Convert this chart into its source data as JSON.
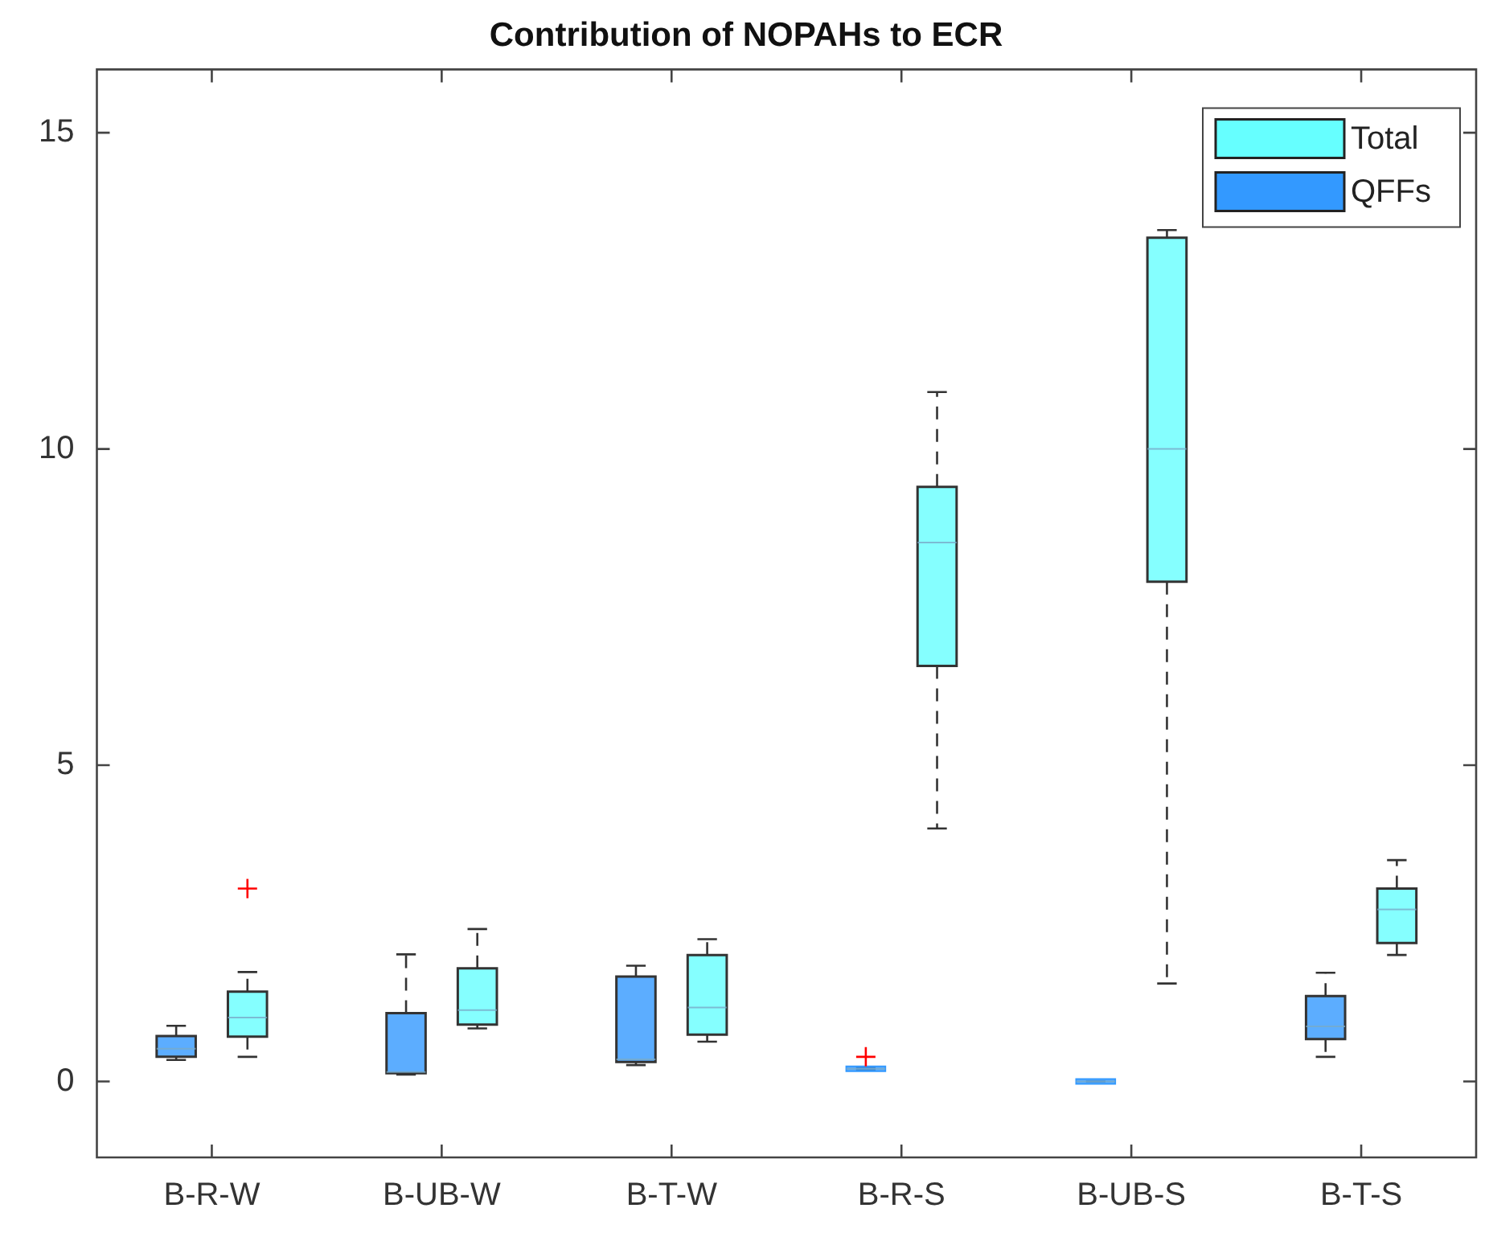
{
  "chart_data": {
    "type": "box",
    "title": "Contribution of NOPAHs to ECR",
    "categories": [
      "B-R-W",
      "B-UB-W",
      "B-T-W",
      "B-R-S",
      "B-UB-S",
      "B-T-S"
    ],
    "series": [
      {
        "name": "Total",
        "color": "#66ffff",
        "boxes": [
          {
            "low": 0.39,
            "q1": 0.71,
            "median": 1.01,
            "q3": 1.42,
            "high": 1.73,
            "outliers": [
              3.05
            ]
          },
          {
            "low": 0.84,
            "q1": 0.9,
            "median": 1.13,
            "q3": 1.79,
            "high": 2.41
          },
          {
            "low": 0.63,
            "q1": 0.74,
            "median": 1.17,
            "q3": 2.0,
            "high": 2.25
          },
          {
            "low": 4.0,
            "q1": 6.57,
            "median": 8.52,
            "q3": 9.4,
            "high": 10.9
          },
          {
            "low": 1.55,
            "q1": 7.9,
            "median": 10.0,
            "q3": 13.34,
            "high": 13.46
          },
          {
            "low": 2.0,
            "q1": 2.19,
            "median": 2.72,
            "q3": 3.05,
            "high": 3.5
          }
        ]
      },
      {
        "name": "QFFs",
        "color": "#3399ff",
        "boxes": [
          {
            "low": 0.34,
            "q1": 0.39,
            "median": 0.52,
            "q3": 0.72,
            "high": 0.88
          },
          {
            "low": 0.11,
            "q1": 0.13,
            "median": 0.15,
            "q3": 1.08,
            "high": 2.01
          },
          {
            "low": 0.26,
            "q1": 0.31,
            "median": 0.35,
            "q3": 1.66,
            "high": 1.83
          },
          {
            "low": 0.18,
            "q1": 0.19,
            "median": 0.2,
            "q3": 0.21,
            "high": 0.22,
            "outliers": [
              0.39
            ]
          },
          {
            "low": 0,
            "q1": 0,
            "median": 0,
            "q3": 0,
            "high": 0
          },
          {
            "low": 0.39,
            "q1": 0.67,
            "median": 0.87,
            "q3": 1.35,
            "high": 1.72
          }
        ]
      }
    ],
    "ylim": [
      -1.2,
      16
    ],
    "yticks": [
      0,
      5,
      10,
      15
    ],
    "grid": false,
    "legend": "top right",
    "marker": "cross",
    "line_style": "dashed"
  }
}
